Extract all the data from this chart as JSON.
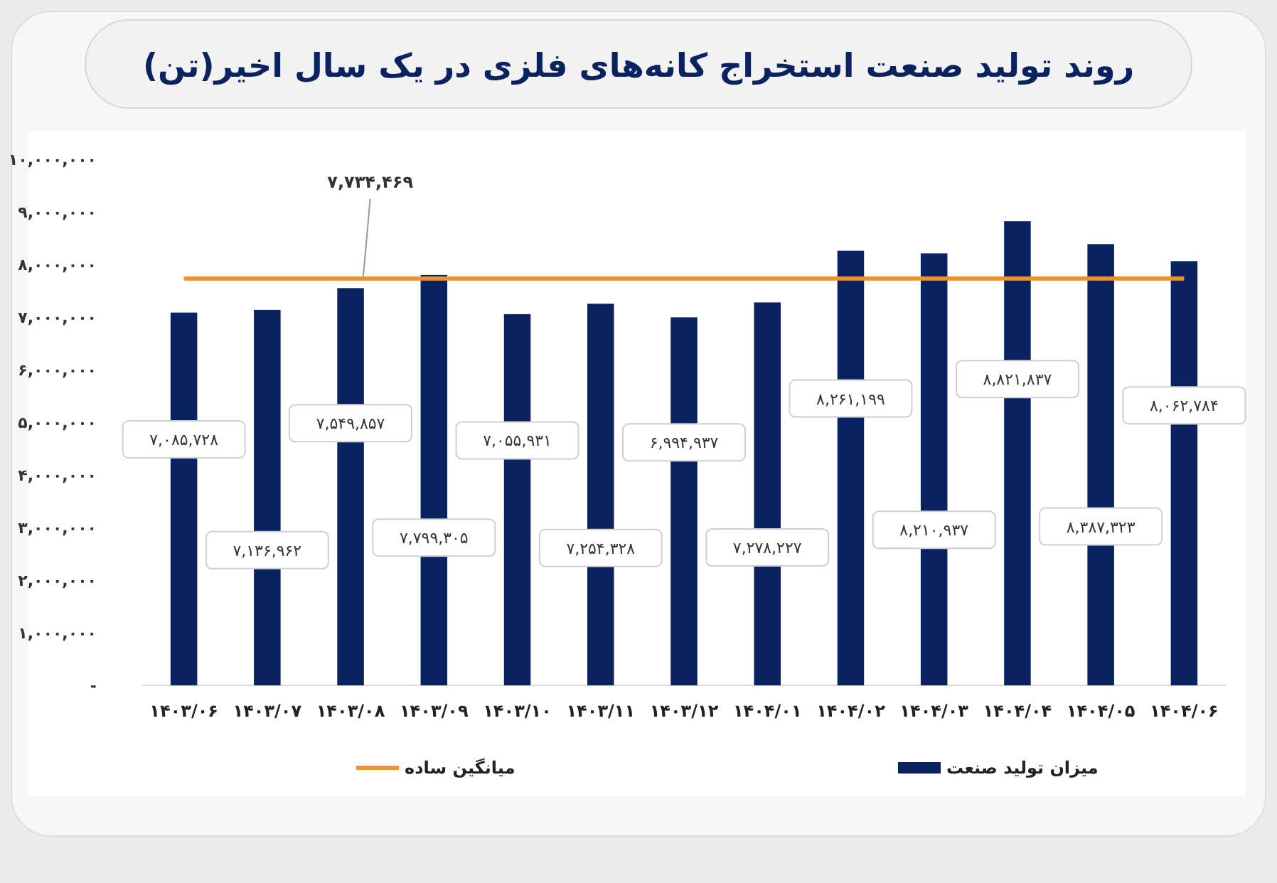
{
  "chart_data": {
    "type": "bar",
    "title": "روند تولید صنعت استخراج کانه‌های فلزی در یک سال اخیر(تن)",
    "categories": [
      "۱۴۰۳/۰۶",
      "۱۴۰۳/۰۷",
      "۱۴۰۳/۰۸",
      "۱۴۰۳/۰۹",
      "۱۴۰۳/۱۰",
      "۱۴۰۳/۱۱",
      "۱۴۰۳/۱۲",
      "۱۴۰۴/۰۱",
      "۱۴۰۴/۰۲",
      "۱۴۰۴/۰۳",
      "۱۴۰۴/۰۴",
      "۱۴۰۴/۰۵",
      "۱۴۰۴/۰۶"
    ],
    "series": [
      {
        "name": "میزان تولید صنعت",
        "color": "#0b2260",
        "values": [
          7085728,
          7136962,
          7549857,
          7799305,
          7055931,
          7254328,
          6994937,
          7278227,
          8261199,
          8210937,
          8821837,
          8387323,
          8062784
        ],
        "value_labels": [
          "۷,۰۸۵,۷۲۸",
          "۷,۱۳۶,۹۶۲",
          "۷,۵۴۹,۸۵۷",
          "۷,۷۹۹,۳۰۵",
          "۷,۰۵۵,۹۳۱",
          "۷,۲۵۴,۳۲۸",
          "۶,۹۹۴,۹۳۷",
          "۷,۲۷۸,۲۲۷",
          "۸,۲۶۱,۱۹۹",
          "۸,۲۱۰,۹۳۷",
          "۸,۸۲۱,۸۳۷",
          "۸,۳۸۷,۳۲۳",
          "۸,۰۶۲,۷۸۴"
        ]
      },
      {
        "name": "میانگین ساده",
        "type": "line",
        "color": "#f0922b",
        "values": [
          7734469,
          7734469,
          7734469,
          7734469,
          7734469,
          7734469,
          7734469,
          7734469,
          7734469,
          7734469,
          7734469,
          7734469,
          7734469
        ]
      }
    ],
    "annotations": [
      {
        "text": "۷,۷۳۴,۴۶۹",
        "x": "۱۴۰۳/۰۸",
        "y": 7734469
      }
    ],
    "ylim": [
      0,
      10000000
    ],
    "yticks": [
      {
        "value": 0,
        "label": "-"
      },
      {
        "value": 1000000,
        "label": "۱,۰۰۰,۰۰۰"
      },
      {
        "value": 2000000,
        "label": "۲,۰۰۰,۰۰۰"
      },
      {
        "value": 3000000,
        "label": "۳,۰۰۰,۰۰۰"
      },
      {
        "value": 4000000,
        "label": "۴,۰۰۰,۰۰۰"
      },
      {
        "value": 5000000,
        "label": "۵,۰۰۰,۰۰۰"
      },
      {
        "value": 6000000,
        "label": "۶,۰۰۰,۰۰۰"
      },
      {
        "value": 7000000,
        "label": "۷,۰۰۰,۰۰۰"
      },
      {
        "value": 8000000,
        "label": "۸,۰۰۰,۰۰۰"
      },
      {
        "value": 9000000,
        "label": "۹,۰۰۰,۰۰۰"
      },
      {
        "value": 10000000,
        "label": "۱۰,۰۰۰,۰۰۰"
      }
    ],
    "legend": "bottom"
  }
}
